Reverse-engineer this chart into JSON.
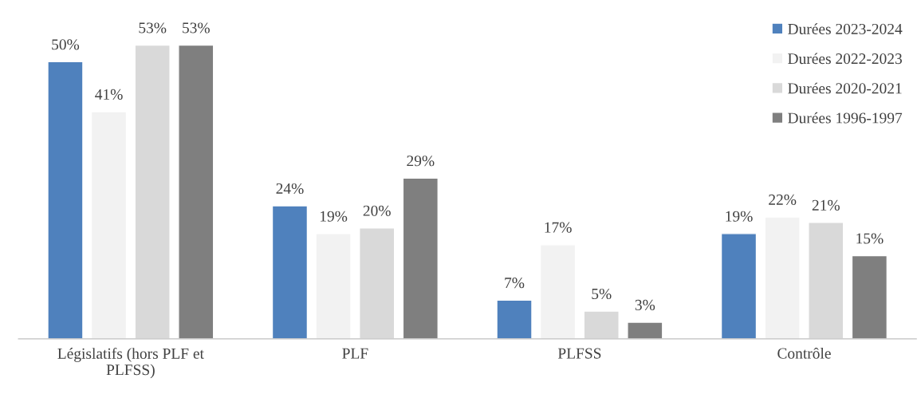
{
  "chart_data": {
    "type": "bar",
    "categories": [
      "Législatifs (hors PLF et\nPLFSS)",
      "PLF",
      "PLFSS",
      "Contrôle"
    ],
    "series": [
      {
        "name": "Durées 2023-2024",
        "color": "#4f81bd",
        "values": [
          50,
          24,
          7,
          19
        ],
        "value_labels": [
          "50%",
          "24%",
          "7%",
          "19%"
        ]
      },
      {
        "name": "Durées 2022-2023",
        "color": "#f2f2f2",
        "values": [
          41,
          19,
          17,
          22
        ],
        "value_labels": [
          "41%",
          "19%",
          "17%",
          "22%"
        ]
      },
      {
        "name": "Durées 2020-2021",
        "color": "#d9d9d9",
        "values": [
          53,
          20,
          5,
          21
        ],
        "value_labels": [
          "53%",
          "20%",
          "5%",
          "21%"
        ]
      },
      {
        "name": "Durées 1996-1997",
        "color": "#7f7f7f",
        "values": [
          53,
          29,
          3,
          15
        ],
        "value_labels": [
          "53%",
          "29%",
          "3%",
          "15%"
        ]
      }
    ],
    "legend": "top right",
    "grid": false
  }
}
